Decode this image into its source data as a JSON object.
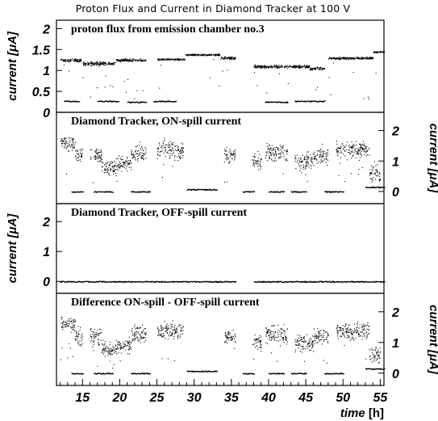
{
  "chart_data": {
    "type": "scatter",
    "title": "Proton Flux and Current in Diamond Tracker at 100 V",
    "xlabel": "time [h]",
    "xlim": [
      11.5,
      55.5
    ],
    "x_ticks": [
      "15",
      "20",
      "25",
      "30",
      "35",
      "40",
      "45",
      "50",
      "55"
    ],
    "panels": [
      {
        "label": "proton flux from emission chamber no.3",
        "ylabel": "current [μA]",
        "ylabel_side": "left",
        "ylim": [
          0,
          2.2
        ],
        "y_ticks": [
          "0",
          "0.5",
          "1",
          "1.5",
          "2"
        ],
        "segments": [
          {
            "x": [
              12.0,
              14.8
            ],
            "y": 1.25,
            "spread": 0.05
          },
          {
            "x": [
              15.0,
              19.5
            ],
            "y": 1.17,
            "spread": 0.06
          },
          {
            "x": [
              19.5,
              23.5
            ],
            "y": 1.25,
            "spread": 0.05
          },
          {
            "x": [
              25.0,
              28.7
            ],
            "y": 1.27,
            "spread": 0.03
          },
          {
            "x": [
              28.8,
              33.5
            ],
            "y": 1.38,
            "spread": 0.03
          },
          {
            "x": [
              33.5,
              35.5
            ],
            "y": 1.3,
            "spread": 0.05
          },
          {
            "x": [
              38.0,
              42.5
            ],
            "y": 1.1,
            "spread": 0.05
          },
          {
            "x": [
              42.5,
              45.5
            ],
            "y": 1.1,
            "spread": 0.05
          },
          {
            "x": [
              45.5,
              47.5
            ],
            "y": 1.05,
            "spread": 0.05
          },
          {
            "x": [
              48.0,
              54.0
            ],
            "y": 1.3,
            "spread": 0.04
          },
          {
            "x": [
              54.0,
              55.5
            ],
            "y": 1.45,
            "spread": 0.03
          }
        ],
        "baseline_segments": [
          {
            "x": [
              12.5,
              14.5
            ],
            "y": 0.27
          },
          {
            "x": [
              17.0,
              19.8
            ],
            "y": 0.27
          },
          {
            "x": [
              21.0,
              23.5
            ],
            "y": 0.25
          },
          {
            "x": [
              24.5,
              27.5
            ],
            "y": 0.27
          },
          {
            "x": [
              39.5,
              42.5
            ],
            "y": 0.25
          },
          {
            "x": [
              43.5,
              47.5
            ],
            "y": 0.27
          }
        ]
      },
      {
        "label": "Diamond Tracker, ON-spill current",
        "ylabel": "current [μA]",
        "ylabel_side": "right",
        "ylim": [
          -0.4,
          2.6
        ],
        "y_ticks": [
          "0",
          "1",
          "2"
        ],
        "segments": [
          {
            "x": [
              12.0,
              14.0
            ],
            "y": 1.6,
            "spread": 0.35
          },
          {
            "x": [
              14.0,
              15.0
            ],
            "y": 1.2,
            "spread": 0.4
          },
          {
            "x": [
              16.0,
              17.5
            ],
            "y": 1.2,
            "spread": 0.4
          },
          {
            "x": [
              17.5,
              19.5
            ],
            "y": 0.8,
            "spread": 0.35
          },
          {
            "x": [
              19.5,
              21.5
            ],
            "y": 0.9,
            "spread": 0.35
          },
          {
            "x": [
              21.5,
              23.5
            ],
            "y": 1.3,
            "spread": 0.4
          },
          {
            "x": [
              25.0,
              28.5
            ],
            "y": 1.4,
            "spread": 0.45
          },
          {
            "x": [
              34.0,
              35.5
            ],
            "y": 1.2,
            "spread": 0.35
          },
          {
            "x": [
              37.8,
              39.0
            ],
            "y": 1.0,
            "spread": 0.4
          },
          {
            "x": [
              39.5,
              42.5
            ],
            "y": 1.3,
            "spread": 0.45
          },
          {
            "x": [
              43.5,
              46.0
            ],
            "y": 1.0,
            "spread": 0.4
          },
          {
            "x": [
              46.0,
              48.0
            ],
            "y": 1.2,
            "spread": 0.4
          },
          {
            "x": [
              49.0,
              53.5
            ],
            "y": 1.4,
            "spread": 0.4
          },
          {
            "x": [
              53.5,
              55.0
            ],
            "y": 0.6,
            "spread": 0.5
          }
        ],
        "baseline_segments": [
          {
            "x": [
              13.5,
              15.0
            ],
            "y": 0.0
          },
          {
            "x": [
              16.5,
              19.0
            ],
            "y": 0.0
          },
          {
            "x": [
              21.5,
              24.0
            ],
            "y": 0.0
          },
          {
            "x": [
              29.0,
              33.0
            ],
            "y": 0.07
          },
          {
            "x": [
              36.5,
              38.0
            ],
            "y": 0.0
          },
          {
            "x": [
              40.0,
              42.0
            ],
            "y": 0.0
          },
          {
            "x": [
              43.0,
              45.0
            ],
            "y": 0.0
          },
          {
            "x": [
              47.5,
              50.0
            ],
            "y": 0.0
          },
          {
            "x": [
              53.0,
              55.5
            ],
            "y": 0.15
          }
        ]
      },
      {
        "label": "Diamond Tracker, OFF-spill current",
        "ylabel": "current [μA]",
        "ylabel_side": "left",
        "ylim": [
          -0.4,
          2.6
        ],
        "y_ticks": [
          "0",
          "1",
          "2"
        ],
        "segments": [],
        "baseline_segments": [
          {
            "x": [
              12.0,
              35.5
            ],
            "y": 0.0
          },
          {
            "x": [
              38.0,
              55.5
            ],
            "y": 0.0
          }
        ]
      },
      {
        "label": "Difference ON-spill - OFF-spill current",
        "ylabel": "current [μA]",
        "ylabel_side": "right",
        "ylim": [
          -0.4,
          2.6
        ],
        "y_ticks": [
          "0",
          "1",
          "2"
        ],
        "segments": [
          {
            "x": [
              12.0,
              14.0
            ],
            "y": 1.6,
            "spread": 0.35
          },
          {
            "x": [
              14.0,
              15.0
            ],
            "y": 1.2,
            "spread": 0.4
          },
          {
            "x": [
              16.0,
              17.5
            ],
            "y": 1.2,
            "spread": 0.4
          },
          {
            "x": [
              17.5,
              19.5
            ],
            "y": 0.8,
            "spread": 0.35
          },
          {
            "x": [
              19.5,
              21.5
            ],
            "y": 0.9,
            "spread": 0.35
          },
          {
            "x": [
              21.5,
              23.5
            ],
            "y": 1.3,
            "spread": 0.4
          },
          {
            "x": [
              25.0,
              28.5
            ],
            "y": 1.4,
            "spread": 0.45
          },
          {
            "x": [
              34.0,
              35.5
            ],
            "y": 1.2,
            "spread": 0.35
          },
          {
            "x": [
              37.8,
              39.0
            ],
            "y": 1.0,
            "spread": 0.4
          },
          {
            "x": [
              39.5,
              42.5
            ],
            "y": 1.3,
            "spread": 0.45
          },
          {
            "x": [
              43.5,
              46.0
            ],
            "y": 1.0,
            "spread": 0.4
          },
          {
            "x": [
              46.0,
              48.0
            ],
            "y": 1.2,
            "spread": 0.4
          },
          {
            "x": [
              49.0,
              53.5
            ],
            "y": 1.4,
            "spread": 0.4
          },
          {
            "x": [
              53.5,
              55.0
            ],
            "y": 0.6,
            "spread": 0.5
          }
        ],
        "baseline_segments": [
          {
            "x": [
              13.5,
              15.0
            ],
            "y": 0.0
          },
          {
            "x": [
              16.5,
              19.0
            ],
            "y": 0.0
          },
          {
            "x": [
              21.5,
              24.0
            ],
            "y": 0.0
          },
          {
            "x": [
              29.0,
              33.0
            ],
            "y": 0.07
          },
          {
            "x": [
              36.5,
              38.0
            ],
            "y": 0.0
          },
          {
            "x": [
              40.0,
              42.0
            ],
            "y": 0.0
          },
          {
            "x": [
              43.0,
              45.0
            ],
            "y": 0.0
          },
          {
            "x": [
              47.5,
              50.0
            ],
            "y": 0.0
          },
          {
            "x": [
              53.0,
              55.5
            ],
            "y": 0.15
          }
        ]
      }
    ],
    "colors": {
      "marker": "#000000",
      "frame": "#000000",
      "background": "#ffffff"
    }
  }
}
